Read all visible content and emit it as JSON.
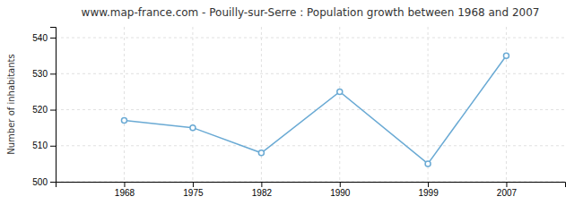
{
  "chart_data": {
    "type": "line",
    "title": "www.map-france.com - Pouilly-sur-Serre : Population growth between 1968 and 2007",
    "ylabel": "Number of inhabitants",
    "x": [
      1968,
      1975,
      1982,
      1990,
      1999,
      2007
    ],
    "values": [
      517,
      515,
      508,
      525,
      505,
      535
    ],
    "color": "#6aaad4",
    "marker": "circle",
    "xlim": [
      1961,
      2013
    ],
    "xticks": [
      1968,
      1975,
      1982,
      1990,
      1999,
      2007
    ],
    "ylim": [
      500,
      543
    ],
    "yticks": [
      500,
      510,
      520,
      530,
      540
    ],
    "grid": true
  }
}
